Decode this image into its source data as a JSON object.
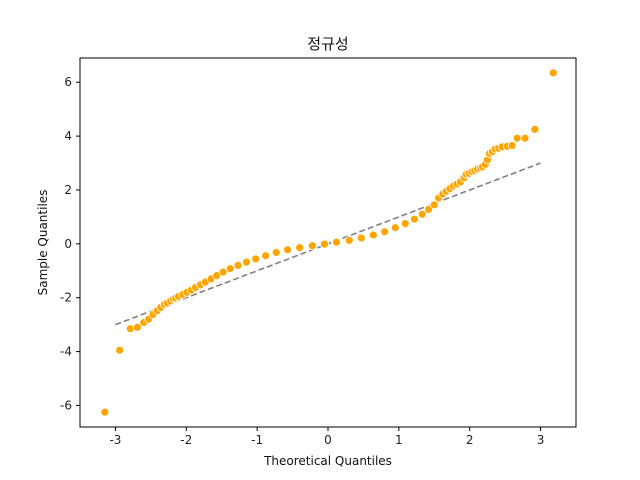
{
  "chart_data": {
    "type": "scatter",
    "title": "정규성",
    "xlabel": "Theoretical Quantiles",
    "ylabel": "Sample Quantiles",
    "xlim": [
      -3.5,
      3.5
    ],
    "ylim": [
      -6.8,
      6.9
    ],
    "xticks": [
      -3,
      -2,
      -1,
      0,
      1,
      2,
      3
    ],
    "yticks": [
      -6,
      -4,
      -2,
      0,
      2,
      4,
      6
    ],
    "xtick_labels": [
      "-3",
      "-2",
      "-1",
      "0",
      "1",
      "2",
      "3"
    ],
    "ytick_labels": [
      "-6",
      "-4",
      "-2",
      "0",
      "2",
      "4",
      "6"
    ],
    "grid": false,
    "colors": {
      "marker": "#ffa500",
      "marker_edge": "#ffffff",
      "reference_line": "#808080",
      "axes": "#000000"
    },
    "reference_line": {
      "style": "dashed",
      "x": [
        -3.0,
        3.0
      ],
      "y": [
        -3.0,
        3.0
      ]
    },
    "series": [
      {
        "x": [
          -3.15,
          -2.94,
          -2.79,
          -2.69,
          -2.6,
          -2.53,
          -2.47,
          -2.41,
          -2.36,
          -2.31,
          -2.27,
          -2.22,
          -2.18,
          -2.15,
          -2.11,
          -2.05,
          -1.99,
          -1.93,
          -1.87,
          -1.8,
          -1.73,
          -1.65,
          -1.57,
          -1.48,
          -1.38,
          -1.27,
          -1.15,
          -1.02,
          -0.88,
          -0.73,
          -0.57,
          -0.4,
          -0.22,
          -0.05,
          0.12,
          0.3,
          0.47,
          0.64,
          0.8,
          0.95,
          1.09,
          1.22,
          1.33,
          1.42,
          1.5,
          1.56,
          1.62,
          1.67,
          1.72,
          1.77,
          1.82,
          1.87,
          1.92,
          1.95,
          1.99,
          2.03,
          2.07,
          2.11,
          2.15,
          2.18,
          2.22,
          2.25,
          2.28,
          2.32,
          2.36,
          2.41,
          2.46,
          2.53,
          2.6,
          2.67,
          2.78,
          2.92,
          3.18
        ],
        "y": [
          -6.25,
          -3.95,
          -3.15,
          -3.1,
          -2.92,
          -2.8,
          -2.62,
          -2.48,
          -2.36,
          -2.25,
          -2.2,
          -2.12,
          -2.05,
          -2.01,
          -1.95,
          -1.88,
          -1.8,
          -1.72,
          -1.62,
          -1.52,
          -1.42,
          -1.3,
          -1.18,
          -1.05,
          -0.92,
          -0.8,
          -0.68,
          -0.56,
          -0.44,
          -0.32,
          -0.22,
          -0.14,
          -0.07,
          -0.01,
          0.06,
          0.13,
          0.22,
          0.33,
          0.45,
          0.6,
          0.75,
          0.92,
          1.1,
          1.28,
          1.45,
          1.7,
          1.85,
          1.95,
          2.05,
          2.15,
          2.22,
          2.3,
          2.45,
          2.58,
          2.62,
          2.68,
          2.72,
          2.78,
          2.82,
          2.86,
          2.95,
          3.12,
          3.35,
          3.42,
          3.52,
          3.55,
          3.6,
          3.62,
          3.65,
          3.92,
          3.92,
          4.25,
          6.35
        ]
      }
    ]
  }
}
